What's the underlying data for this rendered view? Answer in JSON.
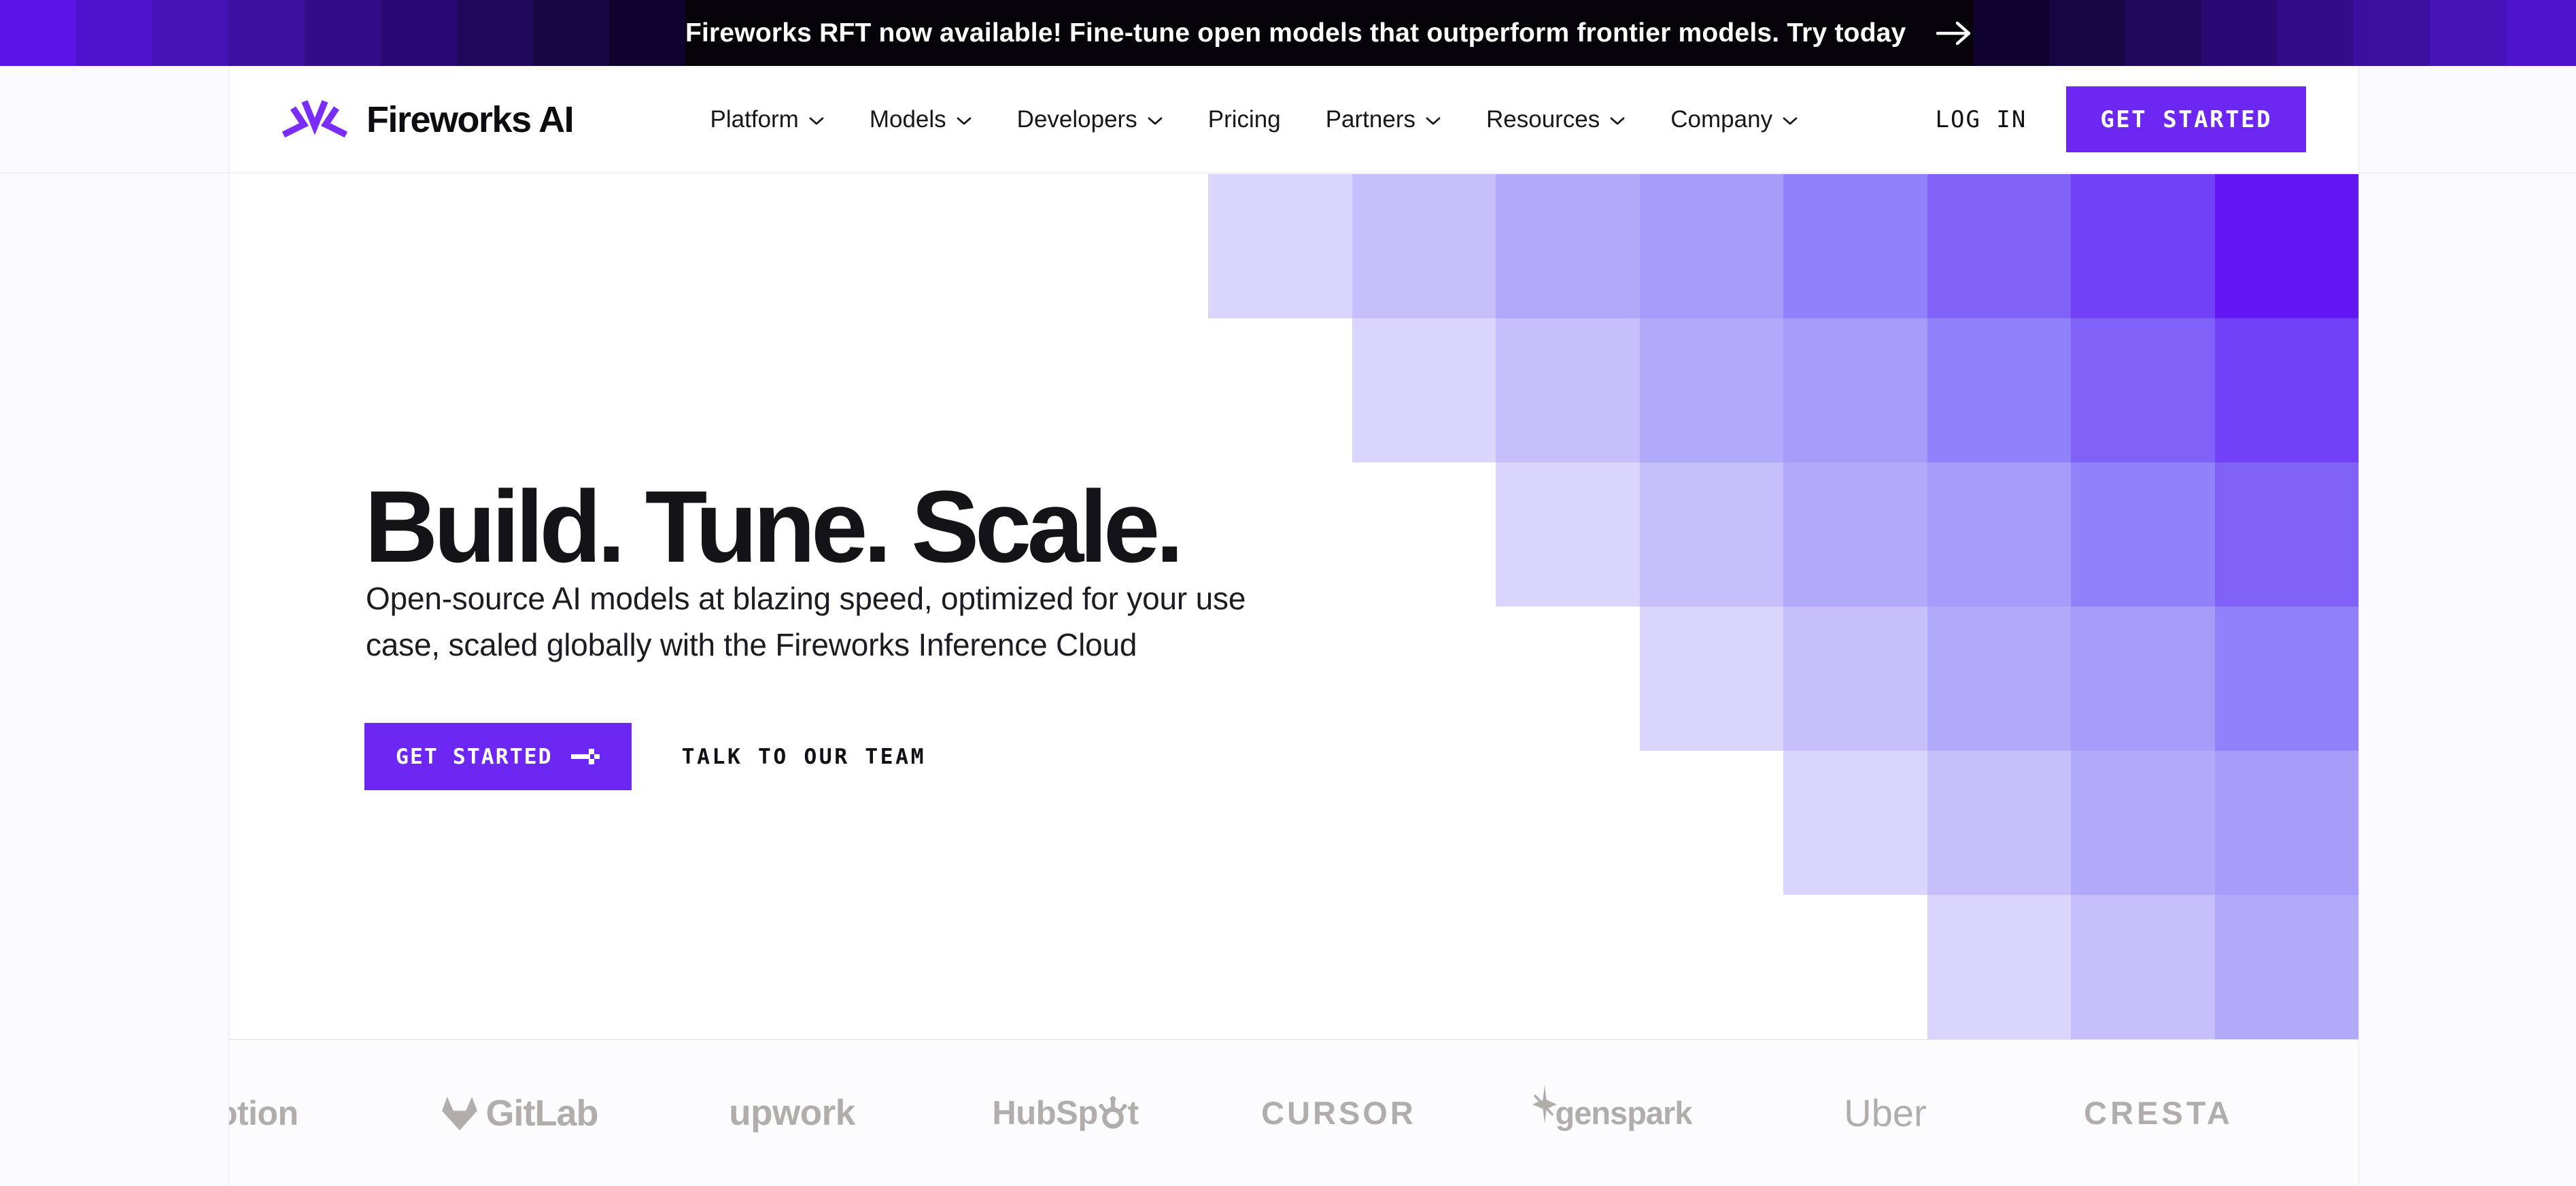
{
  "banner": {
    "text": "Fireworks RFT now available! Fine-tune open models that outperform frontier models. Try today",
    "arrow_icon": "arrow-right-icon",
    "center_bg": "#060309",
    "left_blocks": [
      "#5a15e4",
      "#5013cd",
      "#4611b6",
      "#3c0f9f",
      "#330d89",
      "#2a0a72",
      "#20085b",
      "#170645",
      "#0d032e"
    ],
    "right_blocks": [
      "#0d032e",
      "#170645",
      "#20085b",
      "#2a0a72",
      "#330d89",
      "#3c0f9f",
      "#4611b6",
      "#5013cd",
      "#6017ef"
    ]
  },
  "header": {
    "brand": "Fireworks AI",
    "logo_icon": "fireworks-logo-icon",
    "nav": [
      {
        "label": "Platform",
        "dropdown": true
      },
      {
        "label": "Models",
        "dropdown": true
      },
      {
        "label": "Developers",
        "dropdown": true
      },
      {
        "label": "Pricing",
        "dropdown": false
      },
      {
        "label": "Partners",
        "dropdown": true
      },
      {
        "label": "Resources",
        "dropdown": true
      },
      {
        "label": "Company",
        "dropdown": true
      }
    ],
    "login_label": "LOG IN",
    "get_started_label": "GET STARTED"
  },
  "hero": {
    "title": "Build. Tune. Scale.",
    "subtitle": "Open-source AI models at blazing speed, optimized for your use case, scaled globally with the Fireworks Inference Cloud",
    "subtitle_lines": [
      "Open-source AI models at blazing speed, optimized for your use",
      "case, scaled globally with the Fireworks Inference Cloud"
    ],
    "cta_primary": "GET STARTED",
    "cta_primary_icon": "pixel-arrow-right-icon",
    "cta_secondary": "TALK TO OUR TEAM"
  },
  "mosaic": {
    "rows": 6,
    "cols": 8,
    "palette": [
      "#d9d5fc",
      "#c6bffb",
      "#b1a9fa",
      "#a89cfa",
      "#9181fa",
      "#8062f9",
      "#7240f7",
      "#6318f3"
    ]
  },
  "logo_strip": [
    {
      "key": "notion",
      "label": "Notion"
    },
    {
      "key": "gitlab",
      "label": "GitLab",
      "icon": "gitlab-tanuki-icon"
    },
    {
      "key": "upwork",
      "label": "upwork"
    },
    {
      "key": "hubspot",
      "label": "HubSpot",
      "icon": "hubspot-sprocket-icon",
      "split": [
        "HubSp",
        "t"
      ]
    },
    {
      "key": "cursor",
      "label": "CURSOR"
    },
    {
      "key": "genspark",
      "label": "genspark",
      "icon": "genspark-star-icon"
    },
    {
      "key": "uber",
      "label": "Uber"
    },
    {
      "key": "cresta",
      "label": "CRESTA"
    }
  ],
  "colors": {
    "accent": "#6c27f3",
    "logo_mark": "#7a2cf8",
    "page_bg": "#fbfafe",
    "card_bg": "#ffffff",
    "logo_gray": "#b0adab",
    "heading": "#141318"
  }
}
